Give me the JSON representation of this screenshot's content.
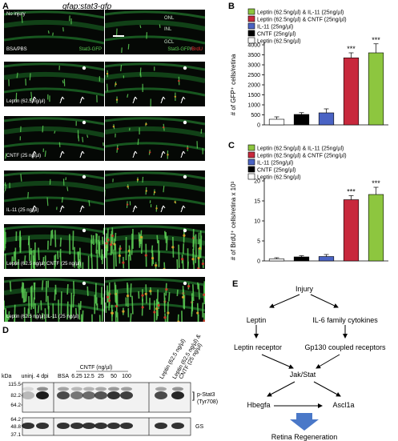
{
  "panelA": {
    "letter": "A",
    "title": "gfap:stat3-gfp",
    "layers": [
      "ONL",
      "INL",
      "GCL"
    ],
    "stains": {
      "left": "Stat3-GFP",
      "right_gfp": "Stat3-GFP",
      "right_sep": "/",
      "right_brdu": "BrdU"
    },
    "rows": [
      {
        "corner": "No injury",
        "label": "BSA/PBS"
      },
      {
        "label": "Leptin (62.5 ng/µl)"
      },
      {
        "label": "CNTF (25 ng/µl)"
      },
      {
        "label": "IL-11 (25 ng/µl)"
      },
      {
        "label": "Leptin (62.5 ng/µl):CNTF (25 ng/µl)"
      },
      {
        "label": "Leptin (62.5 ng/µl):IL-11 (25 ng/µl)"
      }
    ]
  },
  "panelB": {
    "letter": "B",
    "ylabel": "# of GFP⁺ cells/retina",
    "legend": [
      "Leptin (62.5ng/µl) & IL-11 (25ng/µl)",
      "Leptin (62.5ng/µl) & CNTF (25ng/µl)",
      "IL-11 (25ng/µl)",
      "CNTF (25ng/µl)",
      "Leptin (62.5ng/µl)"
    ]
  },
  "panelC": {
    "letter": "C",
    "ylabel": "# of BrdU⁺ cells/retina x 10³",
    "legend": [
      "Leptin (62.5ng/µl) & IL-11 (25ng/µl)",
      "Leptin (62.5ng/µl) & CNTF (25ng/µl)",
      "IL-11 (25ng/µl)",
      "CNTF (25ng/µl)",
      "Leptin (62.5ng/µl)"
    ]
  },
  "chart_data": [
    {
      "type": "bar",
      "panel": "B",
      "categories": [
        "Leptin (62.5ng/µl)",
        "CNTF (25ng/µl)",
        "IL-11 (25ng/µl)",
        "Leptin (62.5ng/µl) & CNTF (25ng/µl)",
        "Leptin (62.5ng/µl) & IL-11 (25ng/µl)"
      ],
      "values": [
        280,
        520,
        600,
        3350,
        3600
      ],
      "errors": [
        120,
        90,
        200,
        250,
        450
      ],
      "colors": [
        "#ffffff",
        "#000000",
        "#4a63c4",
        "#c8283c",
        "#8dc63f"
      ],
      "significance": [
        "",
        "",
        "",
        "***",
        "***"
      ],
      "ylabel": "# of GFP⁺ cells/retina",
      "yticks": [
        0,
        500,
        1000,
        1500,
        2000,
        2500,
        3000,
        3500,
        4000
      ],
      "ylim": [
        0,
        4000
      ]
    },
    {
      "type": "bar",
      "panel": "C",
      "categories": [
        "Leptin (62.5ng/µl)",
        "CNTF (25ng/µl)",
        "IL-11 (25ng/µl)",
        "Leptin (62.5ng/µl) & CNTF (25ng/µl)",
        "Leptin (62.5ng/µl) & IL-11 (25ng/µl)"
      ],
      "values": [
        0.5,
        1.0,
        1.1,
        15.3,
        16.6
      ],
      "errors": [
        0.3,
        0.3,
        0.5,
        1.0,
        1.8
      ],
      "colors": [
        "#ffffff",
        "#000000",
        "#4a63c4",
        "#c8283c",
        "#8dc63f"
      ],
      "significance": [
        "",
        "",
        "",
        "***",
        "***"
      ],
      "ylabel": "# of BrdU⁺ cells/retina x 10³",
      "yticks": [
        0,
        5,
        10,
        15,
        20
      ],
      "ylim": [
        0,
        20
      ]
    }
  ],
  "panelD": {
    "letter": "D",
    "header": "CNTF (ng/µl)",
    "lanes": [
      "uninj.",
      "4 dpi",
      "BSA",
      "6.25",
      "12.5",
      "25",
      "50",
      "100"
    ],
    "rot_labels": [
      "Leptin (62.5 ng/µl)",
      "Leptin (62.5 ng/µl) &",
      "CNTF (25 ng/µl)"
    ],
    "kda_label": "kDa",
    "markers_top": [
      "115.5",
      "82.2",
      "64.2"
    ],
    "markers_bottom": [
      "64.2",
      "48.8",
      "37.1"
    ],
    "band_label_1": "p-Stat3",
    "band_label_2": "(Tyr708)",
    "band_gs": "GS"
  },
  "panelE": {
    "letter": "E",
    "injury": "Injury",
    "leptin": "Leptin",
    "il6": "IL-6 family cytokines",
    "leptin_receptor": "Leptin receptor",
    "gp130": "Gp130 coupled receptors",
    "jakstat": "Jak/Stat",
    "hbegfa": "Hbegfa",
    "ascl1a": "Ascl1a",
    "regen": "Retina Regeneration"
  }
}
